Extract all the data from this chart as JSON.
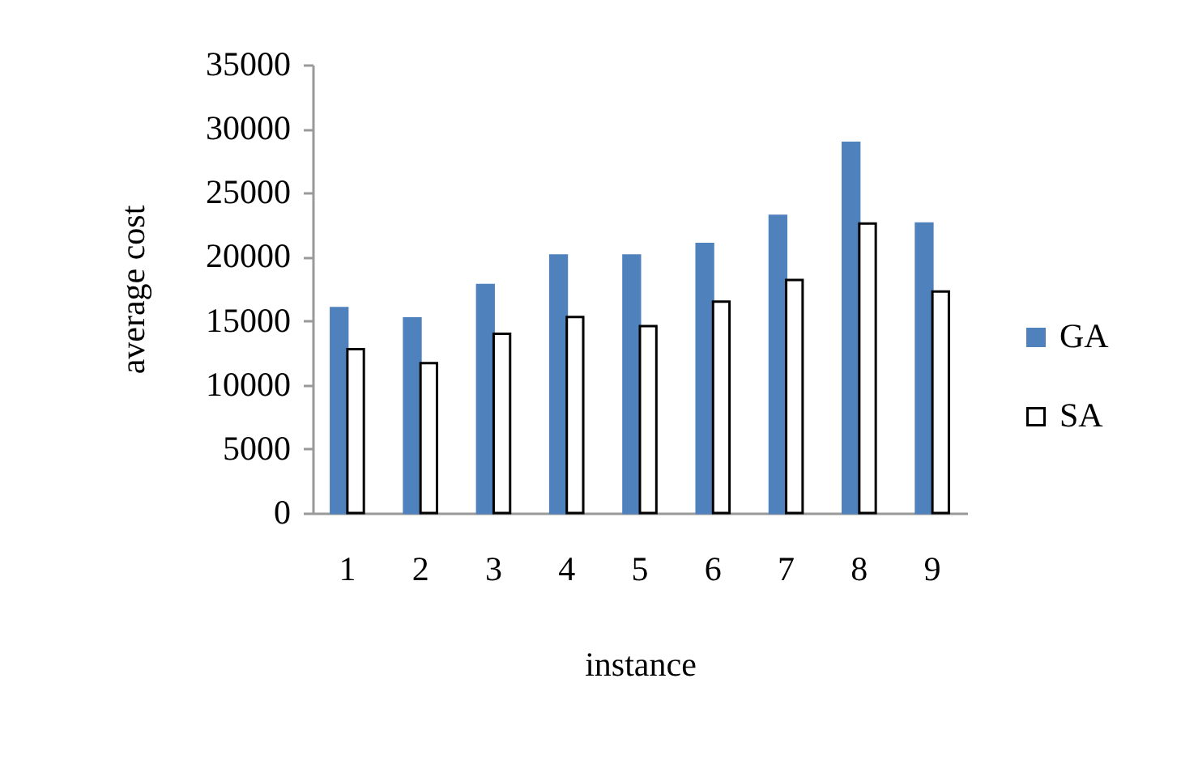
{
  "chart_data": {
    "type": "bar",
    "xlabel": "instance",
    "ylabel": "average cost",
    "categories": [
      "1",
      "2",
      "3",
      "4",
      "5",
      "6",
      "7",
      "8",
      "9"
    ],
    "series": [
      {
        "name": "GA",
        "color": "#4f81bd",
        "values": [
          16000,
          15200,
          17800,
          20100,
          20100,
          21000,
          23200,
          28900,
          22600
        ]
      },
      {
        "name": "SA",
        "color": "#ffffff",
        "values": [
          12800,
          11700,
          14000,
          15300,
          14600,
          16500,
          18200,
          22600,
          17300
        ]
      }
    ],
    "ylim": [
      0,
      35000
    ],
    "yticks": [
      0,
      5000,
      10000,
      15000,
      20000,
      25000,
      30000,
      35000
    ],
    "legend": "right"
  }
}
